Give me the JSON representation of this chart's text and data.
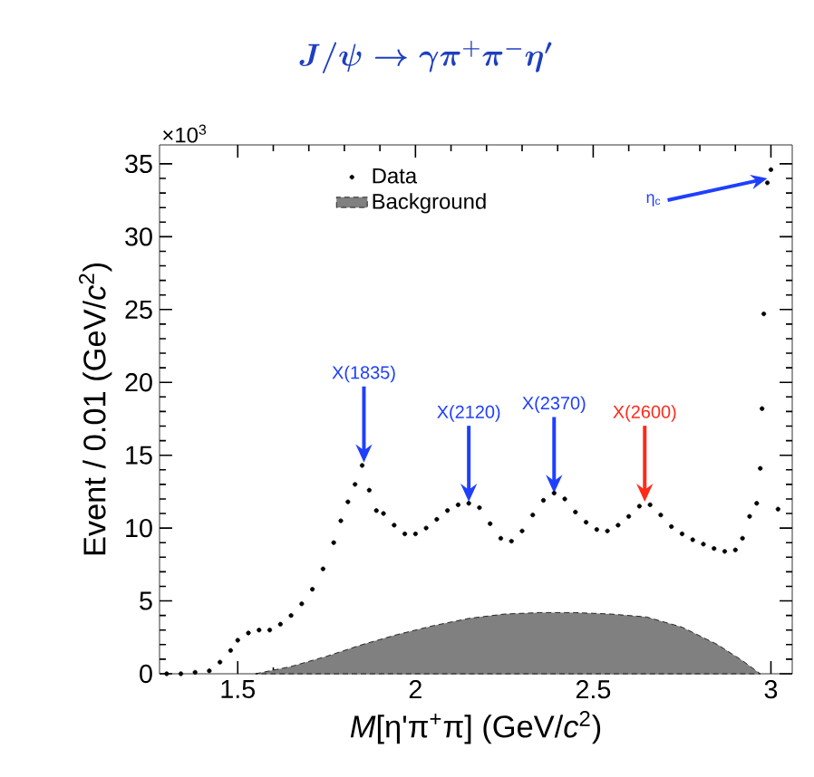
{
  "chart_data": {
    "type": "scatter",
    "title": "J/\\psi \\to \\gamma\\pi^{+}\\pi^{-}\\eta'",
    "xlabel": "*M*[η'π$^{+}$π] (GeV/*c*$^{2}$)",
    "ylabel": "Event / 0.01 (GeV/*c*$^{2}$)",
    "xlim": [
      1.28,
      3.06
    ],
    "ylim": [
      0,
      36.3
    ],
    "xticks": [
      1.5,
      2,
      2.5,
      3
    ],
    "yticks": [
      0,
      5,
      10,
      15,
      20,
      25,
      30,
      35
    ],
    "legend": "top",
    "series": [
      {
        "name": "Data",
        "marker": "circle",
        "color": "#000000",
        "x": [
          1.3,
          1.34,
          1.38,
          1.42,
          1.45,
          1.48,
          1.5,
          1.53,
          1.56,
          1.59,
          1.62,
          1.65,
          1.68,
          1.71,
          1.74,
          1.77,
          1.79,
          1.81,
          1.83,
          1.85,
          1.87,
          1.89,
          1.91,
          1.94,
          1.97,
          2.0,
          2.03,
          2.06,
          2.09,
          2.12,
          2.15,
          2.18,
          2.21,
          2.24,
          2.27,
          2.3,
          2.33,
          2.36,
          2.39,
          2.42,
          2.45,
          2.48,
          2.51,
          2.54,
          2.57,
          2.6,
          2.63,
          2.66,
          2.69,
          2.72,
          2.75,
          2.78,
          2.81,
          2.84,
          2.87,
          2.9,
          2.92,
          2.94,
          2.96,
          2.97,
          2.975,
          2.98,
          3.02,
          2.99,
          3.0
        ],
        "values": [
          0,
          0,
          0.1,
          0.2,
          0.8,
          1.6,
          2.3,
          2.8,
          3.0,
          3.0,
          3.4,
          4.0,
          4.8,
          5.8,
          7.2,
          9.0,
          10.5,
          11.8,
          13.0,
          14.3,
          12.6,
          11.2,
          11.0,
          10.2,
          9.6,
          9.6,
          10.0,
          10.6,
          11.2,
          11.6,
          11.7,
          11.4,
          10.3,
          9.3,
          9.1,
          9.8,
          10.9,
          11.9,
          12.4,
          12.0,
          11.1,
          10.4,
          9.9,
          9.8,
          10.2,
          10.8,
          11.5,
          11.6,
          10.9,
          10.1,
          9.6,
          9.2,
          8.9,
          8.6,
          8.4,
          8.5,
          9.3,
          10.8,
          11.7,
          14.1,
          18.2,
          24.7,
          11.3,
          33.7,
          34.6
        ]
      },
      {
        "name": "Background",
        "type": "area",
        "color": "#808080",
        "x": [
          1.55,
          1.65,
          1.75,
          1.85,
          1.95,
          2.05,
          2.15,
          2.25,
          2.35,
          2.45,
          2.55,
          2.65,
          2.75,
          2.85,
          2.92,
          2.97
        ],
        "values": [
          0,
          0.5,
          1.2,
          2.0,
          2.7,
          3.3,
          3.8,
          4.1,
          4.2,
          4.2,
          4.1,
          3.9,
          3.2,
          2.0,
          0.9,
          0
        ]
      }
    ],
    "annotations": [
      "×10$^{3}$",
      {
        "text": "X(1835)",
        "x": 1.855,
        "y": 14.5
      },
      {
        "text": "X(2120)",
        "x": 2.15,
        "y": 11.8
      },
      {
        "text": "X(2370)",
        "x": 2.39,
        "y": 12.4
      },
      {
        "text": "X(2600)",
        "x": 2.645,
        "y": 11.8
      },
      {
        "text": "η$_{c}$",
        "x": 2.99,
        "y": 34
      }
    ]
  }
}
